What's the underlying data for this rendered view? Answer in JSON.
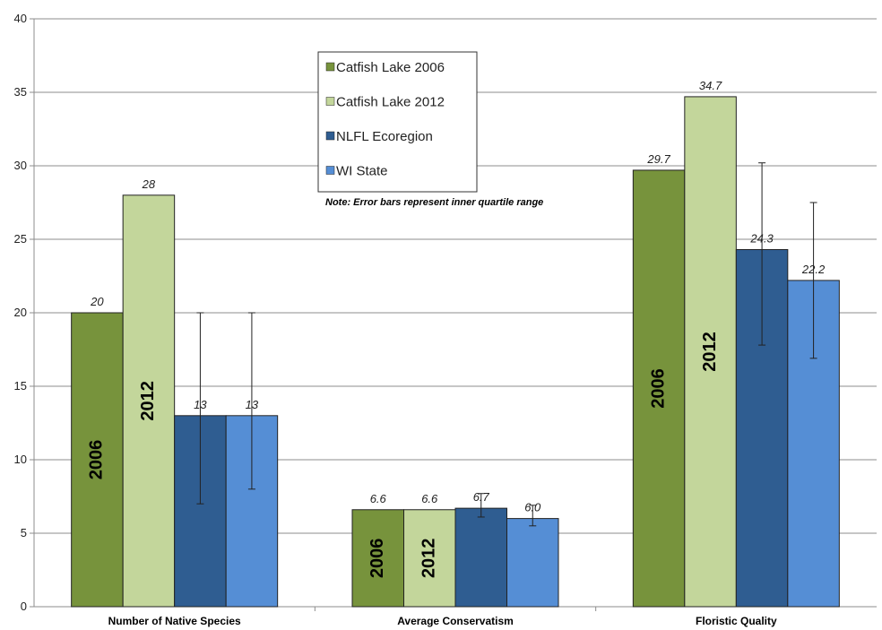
{
  "chart_data": {
    "type": "bar",
    "categories": [
      "Number of Native Species",
      "Average Conservatism",
      "Floristic Quality"
    ],
    "ylim": [
      0,
      40
    ],
    "yticks": [
      0,
      5,
      10,
      15,
      20,
      25,
      30,
      35,
      40
    ],
    "grid": true,
    "legend_position": "top-center",
    "note": "Note: Error bars represent inner quartile range",
    "series": [
      {
        "name": "Catfish Lake 2006",
        "color": "#77933c",
        "values": [
          20,
          6.6,
          29.7
        ],
        "labels": [
          "20",
          "6.6",
          "29.7"
        ],
        "bar_text": "2006",
        "error": null
      },
      {
        "name": "Catfish Lake 2012",
        "color": "#c3d69b",
        "values": [
          28,
          6.6,
          34.7
        ],
        "labels": [
          "28",
          "6.6",
          "34.7"
        ],
        "bar_text": "2012",
        "error": null
      },
      {
        "name": "NLFL Ecoregion",
        "color": "#2f5d91",
        "values": [
          13,
          6.7,
          24.3
        ],
        "labels": [
          "13",
          "6.7",
          "24.3"
        ],
        "bar_text": "",
        "error": [
          [
            7,
            20
          ],
          [
            6.1,
            7.7
          ],
          [
            17.8,
            30.2
          ]
        ]
      },
      {
        "name": "WI State",
        "color": "#558ed5",
        "values": [
          13,
          6.0,
          22.2
        ],
        "labels": [
          "13",
          "6.0",
          "22.2"
        ],
        "bar_text": "",
        "error": [
          [
            8,
            20
          ],
          [
            5.5,
            6.9
          ],
          [
            16.9,
            27.5
          ]
        ]
      }
    ]
  }
}
